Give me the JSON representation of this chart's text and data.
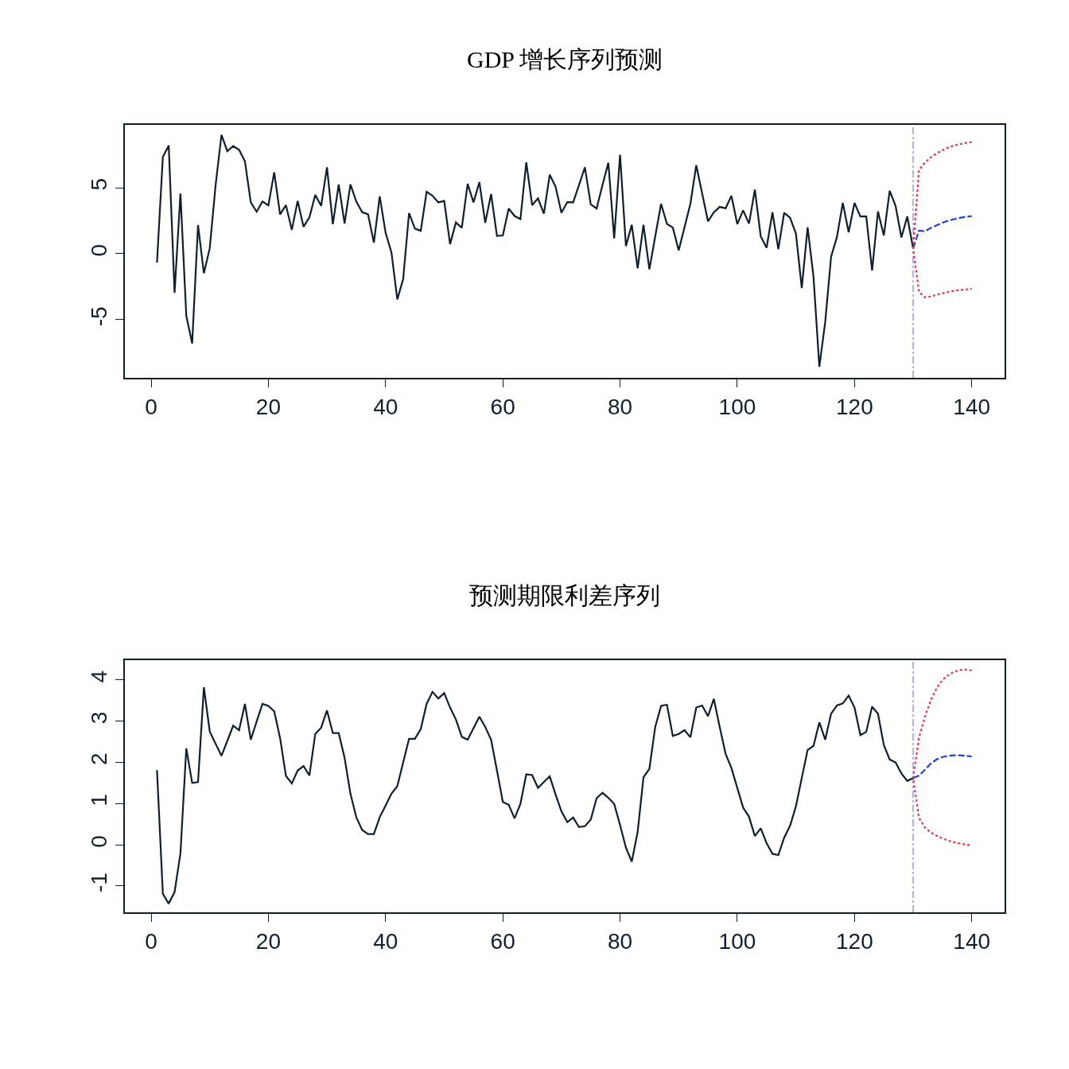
{
  "chart_data": [
    {
      "type": "line",
      "title": "GDP 增长序列预测",
      "xlim": [
        -4.48,
        145.6
      ],
      "ylim": [
        -9.4,
        9.76
      ],
      "xticks": [
        0,
        20,
        40,
        60,
        80,
        100,
        120,
        140
      ],
      "yticks": [
        -5,
        0,
        5
      ],
      "grid": false,
      "marker": "none",
      "ref_lines": [
        {
          "axis": "x",
          "value": 130,
          "color": "#aab4ee",
          "line_style": "dashdot"
        }
      ],
      "series": [
        {
          "color": "#0f1f2f",
          "line_style": "solid",
          "x": [
            1,
            2,
            3,
            4,
            5,
            6,
            7,
            8,
            9,
            10,
            11,
            12,
            13,
            14,
            15,
            16,
            17,
            18,
            19,
            20,
            21,
            22,
            23,
            24,
            25,
            26,
            27,
            28,
            29,
            30,
            31,
            32,
            33,
            34,
            35,
            36,
            37,
            38,
            39,
            40,
            41,
            42,
            43,
            44,
            45,
            46,
            47,
            48,
            49,
            50,
            51,
            52,
            53,
            54,
            55,
            56,
            57,
            58,
            59,
            60,
            61,
            62,
            63,
            64,
            65,
            66,
            67,
            68,
            69,
            70,
            71,
            72,
            73,
            74,
            75,
            76,
            77,
            78,
            79,
            80,
            81,
            82,
            83,
            84,
            85,
            86,
            87,
            88,
            89,
            90,
            91,
            92,
            93,
            94,
            95,
            96,
            97,
            98,
            99,
            100,
            101,
            102,
            103,
            104,
            105,
            106,
            107,
            108,
            109,
            110,
            111,
            112,
            113,
            114,
            115,
            116,
            117,
            118,
            119,
            120,
            121,
            122,
            123,
            124,
            125,
            126,
            127,
            128,
            129,
            130
          ],
          "values": [
            -0.67,
            7.33,
            8.2,
            -2.97,
            4.56,
            -4.7,
            -6.8,
            2.17,
            -1.48,
            0.41,
            5.2,
            9.0,
            7.76,
            8.15,
            7.87,
            7.0,
            3.9,
            3.18,
            3.96,
            3.66,
            6.17,
            2.97,
            3.68,
            1.8,
            4.0,
            2.04,
            2.75,
            4.45,
            3.63,
            6.54,
            2.24,
            5.25,
            2.3,
            5.25,
            3.96,
            3.14,
            2.99,
            0.84,
            4.34,
            1.59,
            0.09,
            -3.46,
            -1.91,
            3.08,
            1.91,
            1.74,
            4.69,
            4.39,
            3.89,
            4.0,
            0.73,
            2.37,
            1.96,
            5.29,
            3.89,
            5.42,
            2.34,
            4.52,
            1.35,
            1.38,
            3.42,
            2.86,
            2.62,
            6.92,
            3.68,
            4.19,
            3.03,
            5.98,
            5.08,
            3.1,
            3.91,
            3.89,
            5.2,
            6.54,
            3.74,
            3.42,
            5.2,
            6.9,
            1.16,
            7.5,
            0.58,
            2.19,
            -1.1,
            2.19,
            -1.18,
            1.31,
            3.78,
            2.26,
            1.98,
            0.26,
            2.0,
            3.78,
            6.7,
            4.58,
            2.45,
            3.14,
            3.55,
            3.44,
            4.39,
            2.24,
            3.29,
            2.28,
            4.86,
            1.31,
            0.45,
            3.14,
            0.34,
            3.1,
            2.73,
            1.53,
            -2.6,
            2.0,
            -1.74,
            -8.56,
            -5.18,
            -0.24,
            1.27,
            3.85,
            1.63,
            3.85,
            2.82,
            2.82,
            -1.27,
            3.2,
            1.38,
            4.77,
            3.63,
            1.23,
            2.82,
            0.41
          ]
        },
        {
          "color": "#2040e0",
          "line_style": "dashed",
          "x": [
            130,
            131,
            132,
            133,
            134,
            135,
            136,
            137,
            138,
            139,
            140
          ],
          "values": [
            0.41,
            1.75,
            1.7,
            1.95,
            2.15,
            2.35,
            2.5,
            2.62,
            2.72,
            2.8,
            2.85
          ]
        },
        {
          "color": "#ee3344",
          "line_style": "dotted",
          "x": [
            140,
            139,
            138,
            137,
            136,
            135,
            134,
            133,
            132,
            131,
            130,
            131,
            132,
            133,
            134,
            135,
            136,
            137,
            138,
            139,
            140
          ],
          "values": [
            8.45,
            8.4,
            8.3,
            8.2,
            8.05,
            7.85,
            7.6,
            7.3,
            6.9,
            6.35,
            0.41,
            -2.9,
            -3.3,
            -3.25,
            -3.1,
            -3.0,
            -2.9,
            -2.8,
            -2.75,
            -2.7,
            -2.65
          ]
        }
      ]
    },
    {
      "type": "line",
      "title": "预测期限利差序列",
      "xlim": [
        -4.48,
        145.6
      ],
      "ylim": [
        -1.64,
        4.48
      ],
      "xticks": [
        0,
        20,
        40,
        60,
        80,
        100,
        120,
        140
      ],
      "yticks": [
        -1,
        0,
        1,
        2,
        3,
        4
      ],
      "grid": false,
      "marker": "none",
      "ref_lines": [
        {
          "axis": "x",
          "value": 130,
          "color": "#aab4ee",
          "line_style": "dashdot"
        }
      ],
      "series": [
        {
          "color": "#0f1f2f",
          "line_style": "solid",
          "x": [
            1,
            2,
            3,
            4,
            5,
            6,
            7,
            8,
            9,
            10,
            11,
            12,
            13,
            14,
            15,
            16,
            17,
            18,
            19,
            20,
            21,
            22,
            23,
            24,
            25,
            26,
            27,
            28,
            29,
            30,
            31,
            32,
            33,
            34,
            35,
            36,
            37,
            38,
            39,
            40,
            41,
            42,
            43,
            44,
            45,
            46,
            47,
            48,
            49,
            50,
            51,
            52,
            53,
            54,
            55,
            56,
            57,
            58,
            59,
            60,
            61,
            62,
            63,
            64,
            65,
            66,
            67,
            68,
            69,
            70,
            71,
            72,
            73,
            74,
            75,
            76,
            77,
            78,
            79,
            80,
            81,
            82,
            83,
            84,
            85,
            86,
            87,
            88,
            89,
            90,
            91,
            92,
            93,
            94,
            95,
            96,
            97,
            98,
            99,
            100,
            101,
            102,
            103,
            104,
            105,
            106,
            107,
            108,
            109,
            110,
            111,
            112,
            113,
            114,
            115,
            116,
            117,
            118,
            119,
            120,
            121,
            122,
            123,
            124,
            125,
            126,
            127,
            128,
            129,
            130
          ],
          "values": [
            1.81,
            -1.19,
            -1.43,
            -1.15,
            -0.21,
            2.34,
            1.5,
            1.52,
            3.82,
            2.75,
            2.45,
            2.16,
            2.52,
            2.89,
            2.78,
            3.42,
            2.55,
            2.99,
            3.42,
            3.37,
            3.24,
            2.59,
            1.67,
            1.49,
            1.8,
            1.91,
            1.68,
            2.69,
            2.84,
            3.26,
            2.71,
            2.71,
            2.11,
            1.24,
            0.67,
            0.36,
            0.26,
            0.26,
            0.67,
            0.95,
            1.24,
            1.42,
            2.0,
            2.57,
            2.57,
            2.81,
            3.42,
            3.71,
            3.55,
            3.68,
            3.33,
            3.04,
            2.62,
            2.55,
            2.83,
            3.11,
            2.86,
            2.55,
            1.8,
            1.04,
            0.97,
            0.64,
            0.99,
            1.71,
            1.69,
            1.38,
            1.52,
            1.66,
            1.22,
            0.81,
            0.55,
            0.66,
            0.43,
            0.45,
            0.61,
            1.13,
            1.26,
            1.14,
            0.99,
            0.48,
            -0.07,
            -0.41,
            0.31,
            1.64,
            1.84,
            2.86,
            3.37,
            3.4,
            2.64,
            2.69,
            2.78,
            2.61,
            3.33,
            3.38,
            3.12,
            3.54,
            2.86,
            2.21,
            1.86,
            1.38,
            0.9,
            0.68,
            0.21,
            0.4,
            0.04,
            -0.22,
            -0.25,
            0.17,
            0.46,
            0.93,
            1.62,
            2.3,
            2.4,
            2.97,
            2.55,
            3.18,
            3.38,
            3.43,
            3.62,
            3.33,
            2.66,
            2.74,
            3.35,
            3.18,
            2.42,
            2.07,
            2.0,
            1.73,
            1.55,
            1.62
          ]
        },
        {
          "color": "#2040e0",
          "line_style": "dashed",
          "x": [
            130,
            131,
            132,
            133,
            134,
            135,
            136,
            137,
            138,
            139,
            140
          ],
          "values": [
            1.62,
            1.68,
            1.82,
            1.97,
            2.07,
            2.13,
            2.16,
            2.17,
            2.17,
            2.16,
            2.14
          ]
        },
        {
          "color": "#ee3344",
          "line_style": "dotted",
          "x": [
            140,
            139,
            138,
            137,
            136,
            135,
            134,
            133,
            132,
            131,
            130,
            131,
            132,
            133,
            134,
            135,
            136,
            137,
            138,
            139,
            140
          ],
          "values": [
            4.23,
            4.25,
            4.24,
            4.2,
            4.12,
            4.0,
            3.8,
            3.5,
            3.1,
            2.6,
            1.62,
            0.65,
            0.42,
            0.3,
            0.22,
            0.15,
            0.1,
            0.06,
            0.03,
            0.0,
            -0.01
          ]
        }
      ]
    }
  ]
}
